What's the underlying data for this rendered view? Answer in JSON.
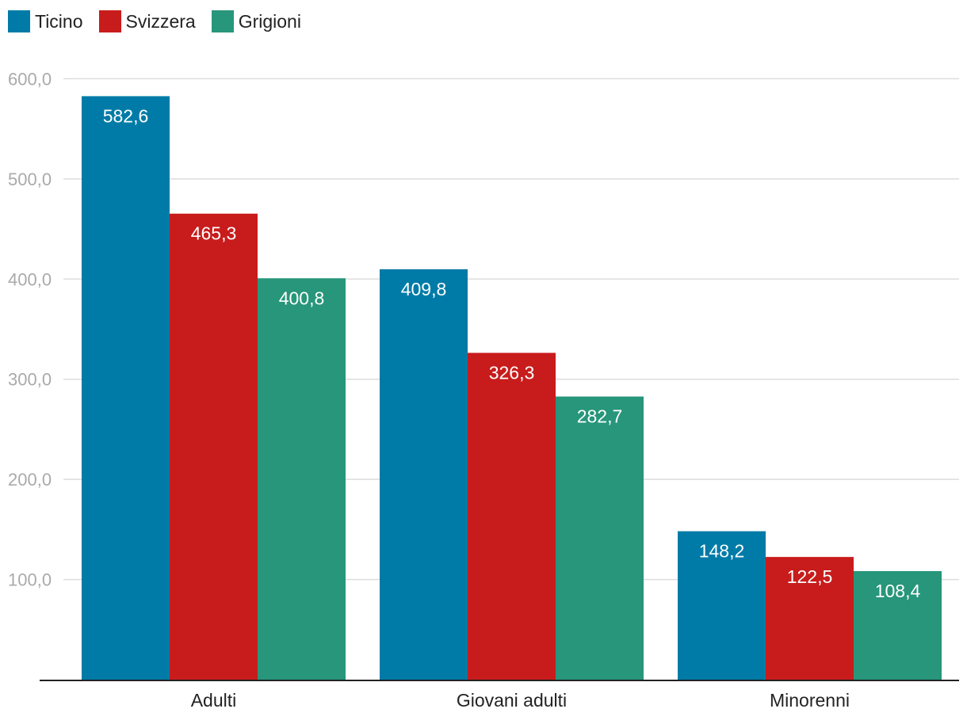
{
  "chart_data": {
    "type": "bar",
    "categories": [
      "Adulti",
      "Giovani adulti",
      "Minorenni"
    ],
    "series": [
      {
        "name": "Ticino",
        "color": "#007ba7",
        "values": [
          582.6,
          409.8,
          148.2
        ],
        "labels": [
          "582,6",
          "409,8",
          "148,2"
        ]
      },
      {
        "name": "Svizzera",
        "color": "#c81c1c",
        "values": [
          465.3,
          326.3,
          122.5
        ],
        "labels": [
          "465,3",
          "326,3",
          "122,5"
        ]
      },
      {
        "name": "Grigioni",
        "color": "#27967a",
        "values": [
          400.8,
          282.7,
          108.4
        ],
        "labels": [
          "400,8",
          "282,7",
          "108,4"
        ]
      }
    ],
    "yticks": [
      100,
      200,
      300,
      400,
      500,
      600
    ],
    "ytick_labels": [
      "100,0",
      "200,0",
      "300,0",
      "400,0",
      "500,0",
      "600,0"
    ],
    "ylim": [
      0,
      600
    ],
    "grid": true,
    "legend": "top-left",
    "title": "",
    "xlabel": "",
    "ylabel": ""
  }
}
